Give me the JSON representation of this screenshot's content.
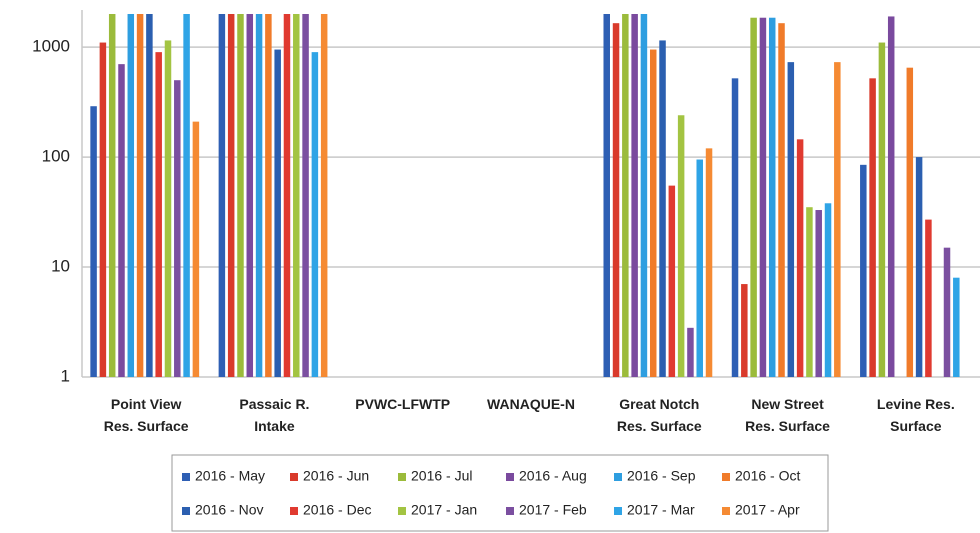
{
  "chart_data": {
    "type": "bar",
    "log": true,
    "grid": true,
    "legend": "bottom",
    "categories": [
      "Point View Res. Surface",
      "Passaic R. Intake",
      "PVWC-LFWTP",
      "WANAQUE-N",
      "Great Notch Res. Surface",
      "New Street Res. Surface",
      "Levine Res. Surface"
    ],
    "ylim": [
      1,
      2000
    ],
    "yticks": [
      1,
      10,
      100,
      1000
    ],
    "series": [
      {
        "name": "2016 - May",
        "color": "#2e5fb4",
        "values": [
          290,
          2000,
          null,
          null,
          2000,
          520,
          85
        ]
      },
      {
        "name": "2016 - Jun",
        "color": "#d93a2b",
        "values": [
          1100,
          2000,
          null,
          null,
          1650,
          7,
          520
        ]
      },
      {
        "name": "2016 - Jul",
        "color": "#9bbb3b",
        "values": [
          2000,
          2000,
          null,
          null,
          2000,
          1850,
          1100
        ]
      },
      {
        "name": "2016 - Aug",
        "color": "#7a4a9e",
        "values": [
          700,
          2000,
          null,
          null,
          2000,
          1850,
          1900
        ]
      },
      {
        "name": "2016 - Sep",
        "color": "#2e9ee0",
        "values": [
          2000,
          2000,
          null,
          null,
          2000,
          1850,
          null
        ]
      },
      {
        "name": "2016 - Oct",
        "color": "#f07b2a",
        "values": [
          2000,
          2000,
          null,
          null,
          950,
          1650,
          650
        ]
      },
      {
        "name": "2016 - Nov",
        "color": "#2b5fb0",
        "values": [
          2000,
          950,
          null,
          null,
          1150,
          730,
          100
        ]
      },
      {
        "name": "2016 - Dec",
        "color": "#e03a30",
        "values": [
          900,
          2000,
          null,
          null,
          55,
          145,
          27
        ]
      },
      {
        "name": "2017 - Jan",
        "color": "#a3c442",
        "values": [
          1150,
          2000,
          null,
          null,
          240,
          35,
          null
        ]
      },
      {
        "name": "2017 - Feb",
        "color": "#7b4fa0",
        "values": [
          500,
          2000,
          null,
          null,
          2.8,
          33,
          15
        ]
      },
      {
        "name": "2017 - Mar",
        "color": "#2fa4e6",
        "values": [
          2000,
          900,
          null,
          null,
          95,
          38,
          8
        ]
      },
      {
        "name": "2017 - Apr",
        "color": "#f58a33",
        "values": [
          210,
          2000,
          null,
          null,
          120,
          730,
          null
        ]
      }
    ]
  }
}
